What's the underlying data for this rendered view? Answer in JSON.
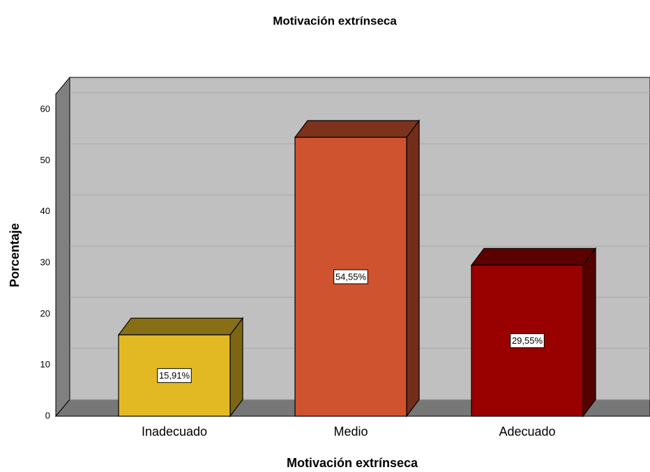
{
  "chart_data": {
    "type": "bar3d",
    "title": "Motivación extrínseca",
    "x_label": "Motivación extrínseca",
    "y_label": "Porcentaje",
    "categories": [
      "Inadecuado",
      "Medio",
      "Adecuado"
    ],
    "values": [
      15.91,
      54.55,
      29.55
    ],
    "value_labels": [
      "15,91%",
      "54,55%",
      "29,55%"
    ],
    "colors": [
      "#e2b923",
      "#d0532f",
      "#990000"
    ],
    "ylim": [
      0,
      63
    ],
    "yticks": [
      0,
      10,
      20,
      30,
      40,
      50,
      60
    ],
    "grid": true
  }
}
